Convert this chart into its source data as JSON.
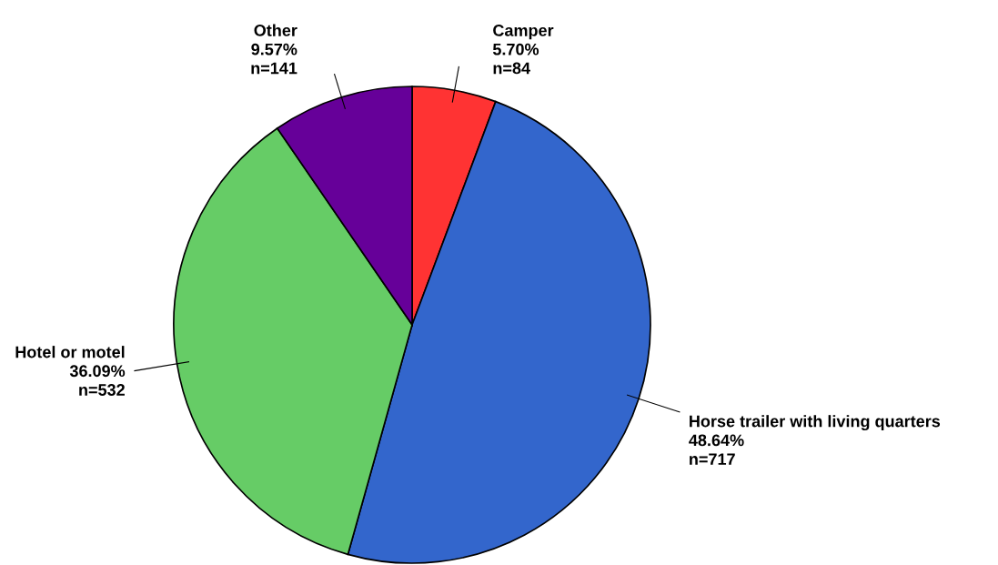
{
  "chart_data": {
    "type": "pie",
    "categories": [
      "Camper",
      "Horse trailer with living quarters",
      "Hotel or motel",
      "Other"
    ],
    "values": [
      5.7,
      48.64,
      36.09,
      9.57
    ],
    "value_labels": [
      "5.70%\nn=84",
      "48.64%\nn=717",
      "36.09%\nn=532",
      "9.57%\nn=141"
    ],
    "colors": [
      "#ff3333",
      "#3366cc",
      "#66cc66",
      "#660099"
    ],
    "legend": false
  }
}
